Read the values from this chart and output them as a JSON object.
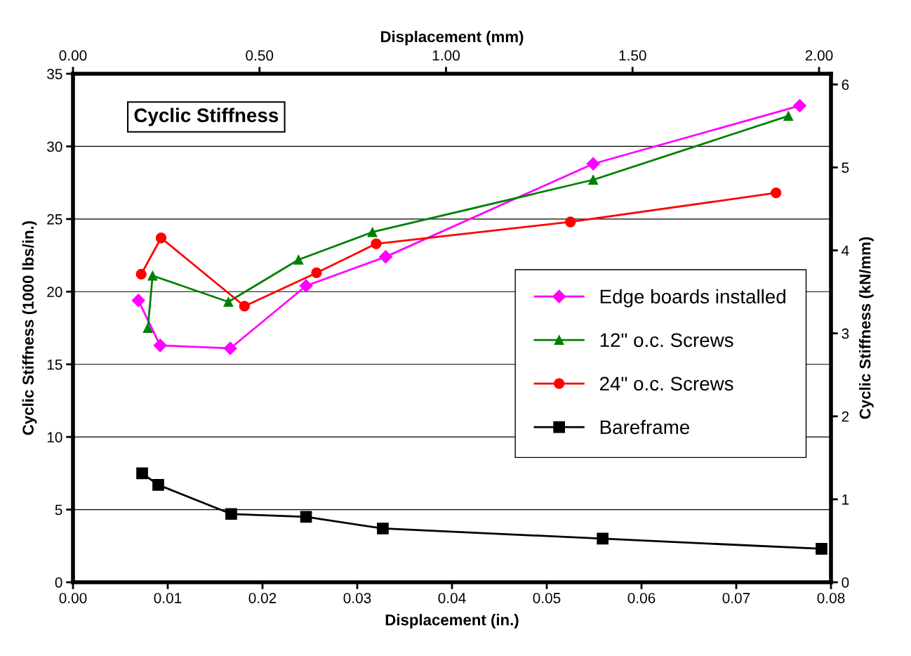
{
  "chart_data": {
    "type": "line",
    "title": "Cyclic Stiffness",
    "xlabel": "Displacement (in.)",
    "ylabel": "Cyclic Stiffness (1000 lbs/in.)",
    "x2label": "Displacement (mm)",
    "y2label": "Cyclic Stiffness (kN/mm)",
    "xlim": [
      0,
      0.08
    ],
    "xticks": [
      {
        "value": 0,
        "label": "0.00"
      },
      {
        "value": 0.01,
        "label": "0.01"
      },
      {
        "value": 0.02,
        "label": "0.02"
      },
      {
        "value": 0.03,
        "label": "0.03"
      },
      {
        "value": 0.04,
        "label": "0.04"
      },
      {
        "value": 0.05,
        "label": "0.05"
      },
      {
        "value": 0.06,
        "label": "0.06"
      },
      {
        "value": 0.07,
        "label": "0.07"
      },
      {
        "value": 0.08,
        "label": "0.08"
      }
    ],
    "ylim": [
      0,
      35
    ],
    "yticks": [
      0,
      5,
      10,
      15,
      20,
      25,
      30,
      35
    ],
    "x2lim": [
      0,
      2.032
    ],
    "x2ticks": [
      {
        "value": 0,
        "label": "0.00"
      },
      {
        "value": 0.5,
        "label": "0.50"
      },
      {
        "value": 1.0,
        "label": "1.00"
      },
      {
        "value": 1.5,
        "label": "1.50"
      },
      {
        "value": 2.0,
        "label": "2.00"
      }
    ],
    "y2lim": [
      0,
      6.129
    ],
    "y2ticks": [
      0,
      1,
      2,
      3,
      4,
      5,
      6
    ],
    "grid": "y",
    "legend": "right",
    "series": [
      {
        "name": "Edge boards installed",
        "color": "#ff00ff",
        "marker": "diamond",
        "x": [
          0.0069,
          0.0092,
          0.0166,
          0.0246,
          0.033,
          0.0549,
          0.0767
        ],
        "values": [
          19.4,
          16.3,
          16.1,
          20.4,
          22.4,
          28.8,
          32.8
        ]
      },
      {
        "name": "12\" o.c. Screws",
        "color": "#008000",
        "marker": "triangle",
        "x": [
          0.0079,
          0.0084,
          0.0164,
          0.0238,
          0.0316,
          0.0549,
          0.0755
        ],
        "values": [
          17.5,
          21.1,
          19.3,
          22.2,
          24.1,
          27.7,
          32.1
        ]
      },
      {
        "name": "24\" o.c. Screws",
        "color": "#ff0000",
        "marker": "circle",
        "x": [
          0.0072,
          0.0093,
          0.0181,
          0.0257,
          0.032,
          0.0525,
          0.0742
        ],
        "values": [
          21.2,
          23.7,
          19.0,
          21.3,
          23.3,
          24.8,
          26.8
        ]
      },
      {
        "name": "Bareframe",
        "color": "#000000",
        "marker": "square",
        "x": [
          0.0073,
          0.009,
          0.0167,
          0.0246,
          0.0327,
          0.0559,
          0.079
        ],
        "values": [
          7.5,
          6.7,
          4.7,
          4.5,
          3.7,
          3.0,
          2.3
        ]
      }
    ]
  }
}
